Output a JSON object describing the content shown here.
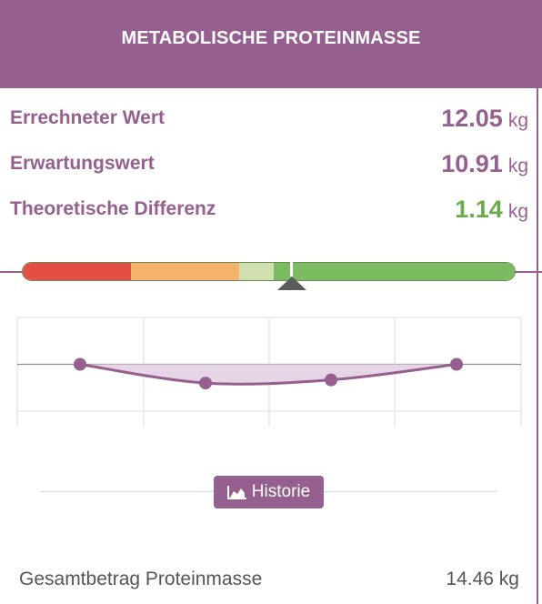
{
  "header": {
    "title": "METABOLISCHE PROTEINMASSE"
  },
  "metrics": [
    {
      "label": "Errechneter Wert",
      "value": "12.05",
      "unit": "kg"
    },
    {
      "label": "Erwartungswert",
      "value": "10.91",
      "unit": "kg"
    },
    {
      "label": "Theoretische Differenz",
      "value": "1.14",
      "unit": "kg"
    }
  ],
  "scale": {
    "colors": {
      "red": "#e24f44",
      "orange": "#f4b26b",
      "light_green": "#cfe0ae",
      "green": "#7dbb62"
    },
    "segments_fraction": [
      0.22,
      0.22,
      0.07,
      0.49
    ],
    "marker_fraction": 0.545
  },
  "chart_data": {
    "type": "line",
    "x": [
      1,
      2,
      3,
      4
    ],
    "values": [
      0,
      -0.6,
      -0.5,
      0
    ],
    "baseline": 0,
    "ylim": [
      -1.5,
      1.5
    ],
    "grid": true,
    "line_color": "#95608f",
    "fill_color": "#e6d5e4"
  },
  "history_button": {
    "label": "Historie",
    "icon": "area-chart-icon"
  },
  "total": {
    "label": "Gesamtbetrag Proteinmasse",
    "value": "14.46 kg"
  }
}
